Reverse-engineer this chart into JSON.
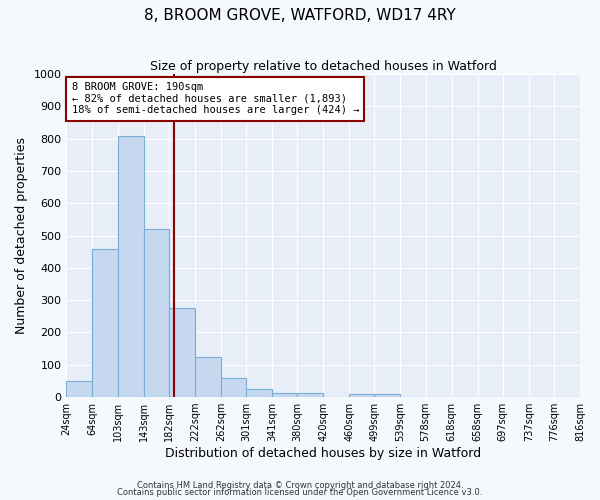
{
  "title": "8, BROOM GROVE, WATFORD, WD17 4RY",
  "subtitle": "Size of property relative to detached houses in Watford",
  "xlabel": "Distribution of detached houses by size in Watford",
  "ylabel": "Number of detached properties",
  "bin_labels": [
    "24sqm",
    "64sqm",
    "103sqm",
    "143sqm",
    "182sqm",
    "222sqm",
    "262sqm",
    "301sqm",
    "341sqm",
    "380sqm",
    "420sqm",
    "460sqm",
    "499sqm",
    "539sqm",
    "578sqm",
    "618sqm",
    "658sqm",
    "697sqm",
    "737sqm",
    "776sqm",
    "816sqm"
  ],
  "bin_edges": [
    24,
    64,
    103,
    143,
    182,
    222,
    262,
    301,
    341,
    380,
    420,
    460,
    499,
    539,
    578,
    618,
    658,
    697,
    737,
    776,
    816
  ],
  "bar_heights": [
    50,
    460,
    810,
    520,
    275,
    125,
    60,
    25,
    12,
    12,
    0,
    10,
    10,
    0,
    0,
    0,
    0,
    0,
    0,
    0
  ],
  "bar_color": "#c5d8f0",
  "bar_edge_color": "#7aaed6",
  "ylim": [
    0,
    1000
  ],
  "yticks": [
    0,
    100,
    200,
    300,
    400,
    500,
    600,
    700,
    800,
    900,
    1000
  ],
  "property_value": 190,
  "vline_color": "#8b0000",
  "annotation_title": "8 BROOM GROVE: 190sqm",
  "annotation_line1": "← 82% of detached houses are smaller (1,893)",
  "annotation_line2": "18% of semi-detached houses are larger (424) →",
  "annotation_box_color": "#8b0000",
  "plot_bg_color": "#e8eef8",
  "fig_bg_color": "#f5f8fd",
  "grid_color": "#ffffff",
  "footer_line1": "Contains HM Land Registry data © Crown copyright and database right 2024.",
  "footer_line2": "Contains public sector information licensed under the Open Government Licence v3.0."
}
